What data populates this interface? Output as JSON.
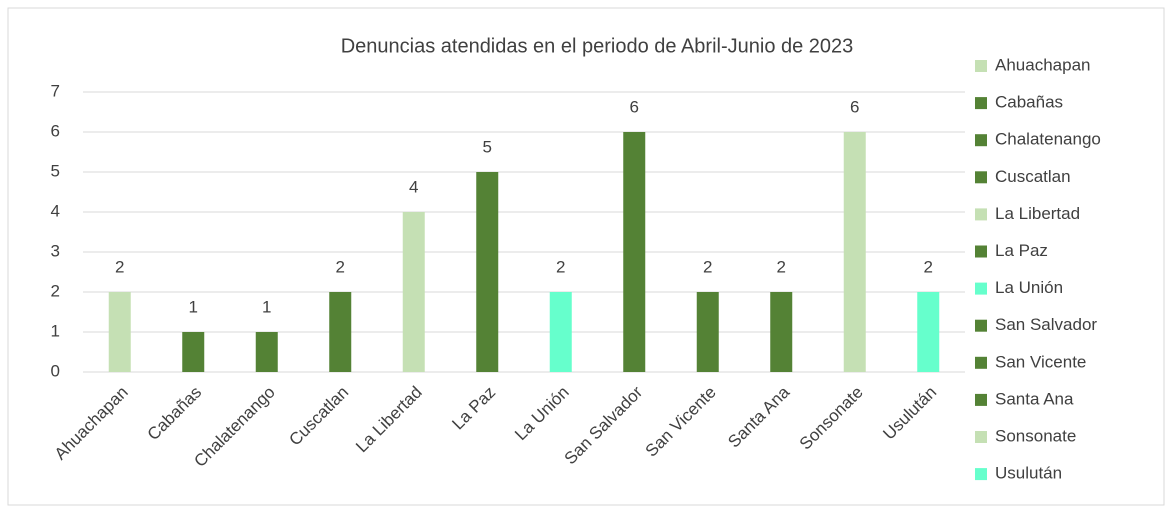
{
  "chart_data": {
    "type": "bar",
    "title": "Denuncias atendidas en el periodo de Abril-Junio de 2023",
    "categories": [
      "Ahuachapan",
      "Cabañas",
      "Chalatenango",
      "Cuscatlan",
      "La Libertad",
      "La Paz",
      "La Unión",
      "San Salvador",
      "San Vicente",
      "Santa Ana",
      "Sonsonate",
      "Usulután"
    ],
    "values": [
      2,
      1,
      1,
      2,
      4,
      5,
      2,
      6,
      2,
      2,
      6,
      2
    ],
    "colors": [
      "#c5e0b4",
      "#548235",
      "#548235",
      "#548235",
      "#c5e0b4",
      "#548235",
      "#66ffcc",
      "#548235",
      "#548235",
      "#548235",
      "#c5e0b4",
      "#66ffcc"
    ],
    "ylim": [
      0,
      7
    ],
    "yticks": [
      0,
      1,
      2,
      3,
      4,
      5,
      6,
      7
    ],
    "grid": true,
    "legend": "right"
  }
}
